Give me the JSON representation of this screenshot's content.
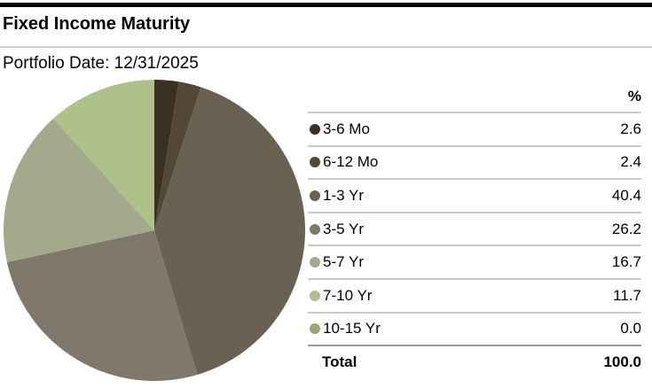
{
  "header": {
    "title": "Fixed Income Maturity",
    "portfolio_date": "Portfolio Date: 12/31/2025"
  },
  "table": {
    "value_column_header": "%",
    "total_label": "Total",
    "total_value": "100.0"
  },
  "chart_data": {
    "type": "pie",
    "title": "Fixed Income Maturity",
    "subtitle": "Portfolio Date: 12/31/2025",
    "unit": "%",
    "start_angle_deg": -90,
    "direction": "clockwise",
    "legend_position": "right",
    "categories": [
      "3-6 Mo",
      "6-12 Mo",
      "1-3 Yr",
      "3-5 Yr",
      "5-7 Yr",
      "7-10 Yr",
      "10-15 Yr"
    ],
    "values": [
      2.6,
      2.4,
      40.4,
      26.2,
      16.7,
      11.7,
      0.0
    ],
    "colors": [
      "#3b3123",
      "#534838",
      "#6a6153",
      "#80786b",
      "#a4a98c",
      "#aec18a",
      "#98a870"
    ],
    "total": 100.0
  },
  "colors": {
    "background": "#ffffff",
    "top_rule": "#000000",
    "title_rule": "#cfcfcf",
    "row_separator": "#c9c9c9",
    "total_separator": "#989898"
  }
}
